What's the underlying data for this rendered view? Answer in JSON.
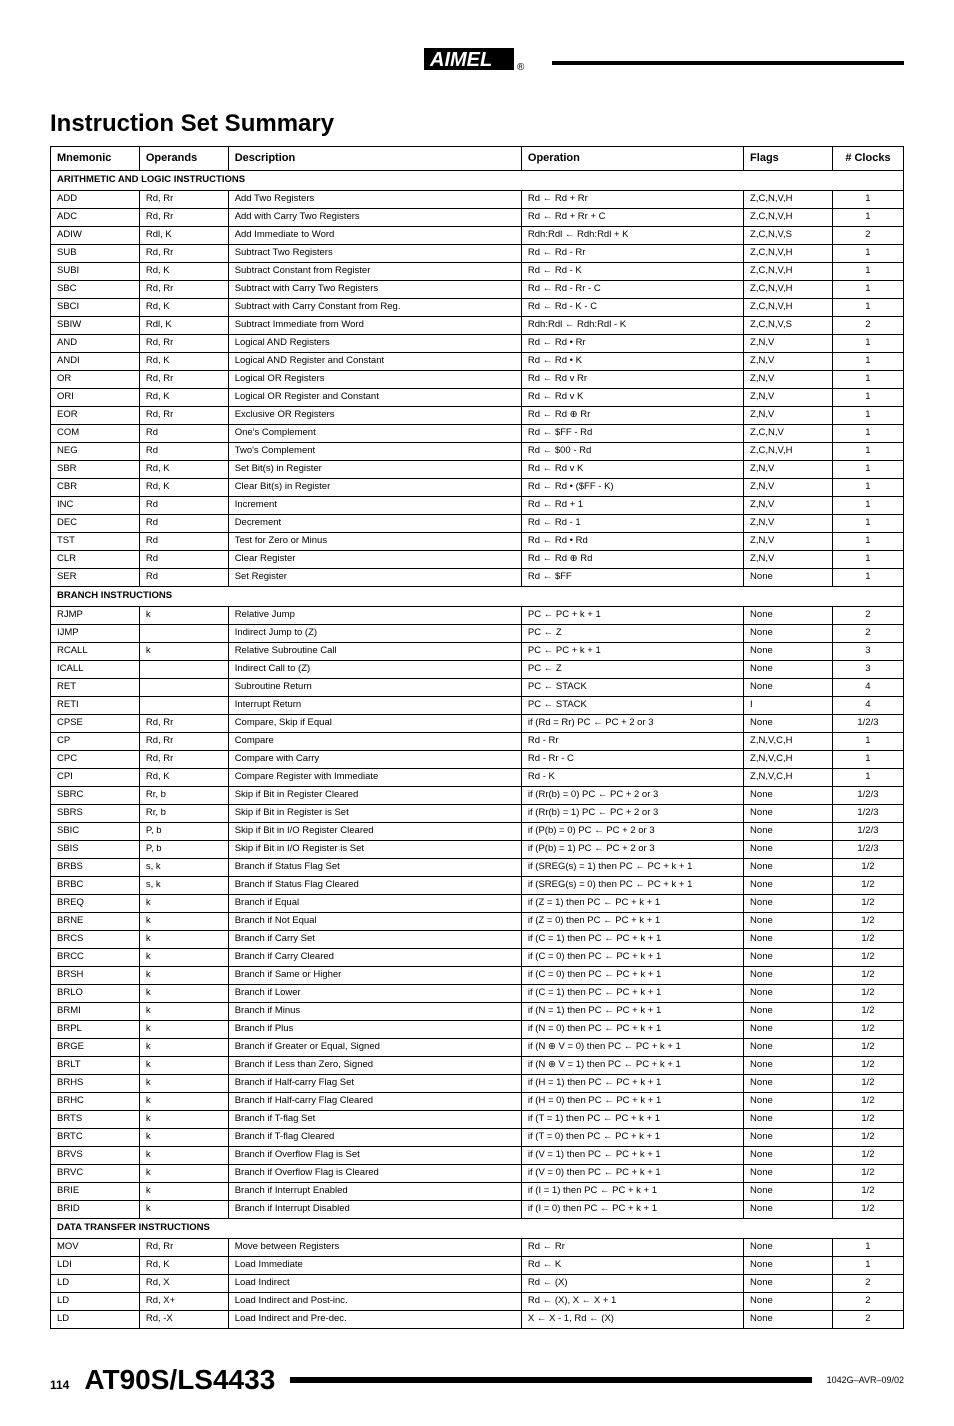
{
  "header": {
    "title": "Instruction Set Summary"
  },
  "columns": [
    "Mnemonic",
    "Operands",
    "Description",
    "Operation",
    "Flags",
    "# Clocks"
  ],
  "sections": [
    {
      "title": "ARITHMETIC AND LOGIC INSTRUCTIONS",
      "rows": [
        [
          "ADD",
          "Rd, Rr",
          "Add Two Registers",
          "Rd ← Rd + Rr",
          "Z,C,N,V,H",
          "1"
        ],
        [
          "ADC",
          "Rd, Rr",
          "Add with Carry Two Registers",
          "Rd ← Rd + Rr + C",
          "Z,C,N,V,H",
          "1"
        ],
        [
          "ADIW",
          "Rdl, K",
          "Add Immediate to Word",
          "Rdh:Rdl ← Rdh:Rdl + K",
          "Z,C,N,V,S",
          "2"
        ],
        [
          "SUB",
          "Rd, Rr",
          "Subtract Two Registers",
          "Rd ← Rd - Rr",
          "Z,C,N,V,H",
          "1"
        ],
        [
          "SUBI",
          "Rd, K",
          "Subtract Constant from Register",
          "Rd ← Rd - K",
          "Z,C,N,V,H",
          "1"
        ],
        [
          "SBC",
          "Rd, Rr",
          "Subtract with Carry Two Registers",
          "Rd ← Rd - Rr - C",
          "Z,C,N,V,H",
          "1"
        ],
        [
          "SBCI",
          "Rd, K",
          "Subtract with Carry Constant from Reg.",
          "Rd ← Rd - K - C",
          "Z,C,N,V,H",
          "1"
        ],
        [
          "SBIW",
          "Rdl, K",
          "Subtract Immediate from Word",
          "Rdh:Rdl ← Rdh:Rdl - K",
          "Z,C,N,V,S",
          "2"
        ],
        [
          "AND",
          "Rd, Rr",
          "Logical AND Registers",
          "Rd ← Rd • Rr",
          "Z,N,V",
          "1"
        ],
        [
          "ANDI",
          "Rd, K",
          "Logical AND Register and Constant",
          "Rd ← Rd • K",
          "Z,N,V",
          "1"
        ],
        [
          "OR",
          "Rd, Rr",
          "Logical OR Registers",
          "Rd ← Rd v Rr",
          "Z,N,V",
          "1"
        ],
        [
          "ORI",
          "Rd, K",
          "Logical OR Register and Constant",
          "Rd ← Rd v K",
          "Z,N,V",
          "1"
        ],
        [
          "EOR",
          "Rd, Rr",
          "Exclusive OR Registers",
          "Rd ← Rd ⊕ Rr",
          "Z,N,V",
          "1"
        ],
        [
          "COM",
          "Rd",
          "One's Complement",
          "Rd ← $FF - Rd",
          "Z,C,N,V",
          "1"
        ],
        [
          "NEG",
          "Rd",
          "Two's Complement",
          "Rd ← $00 - Rd",
          "Z,C,N,V,H",
          "1"
        ],
        [
          "SBR",
          "Rd, K",
          "Set Bit(s) in Register",
          "Rd ← Rd v K",
          "Z,N,V",
          "1"
        ],
        [
          "CBR",
          "Rd, K",
          "Clear Bit(s) in Register",
          "Rd ← Rd • ($FF - K)",
          "Z,N,V",
          "1"
        ],
        [
          "INC",
          "Rd",
          "Increment",
          "Rd ← Rd + 1",
          "Z,N,V",
          "1"
        ],
        [
          "DEC",
          "Rd",
          "Decrement",
          "Rd ← Rd - 1",
          "Z,N,V",
          "1"
        ],
        [
          "TST",
          "Rd",
          "Test for Zero or Minus",
          "Rd ← Rd • Rd",
          "Z,N,V",
          "1"
        ],
        [
          "CLR",
          "Rd",
          "Clear Register",
          "Rd ← Rd ⊕ Rd",
          "Z,N,V",
          "1"
        ],
        [
          "SER",
          "Rd",
          "Set Register",
          "Rd ← $FF",
          "None",
          "1"
        ]
      ]
    },
    {
      "title": "BRANCH INSTRUCTIONS",
      "rows": [
        [
          "RJMP",
          "k",
          "Relative Jump",
          "PC ← PC + k + 1",
          "None",
          "2"
        ],
        [
          "IJMP",
          "",
          "Indirect Jump to (Z)",
          "PC ← Z",
          "None",
          "2"
        ],
        [
          "RCALL",
          "k",
          "Relative Subroutine Call",
          "PC ← PC + k + 1",
          "None",
          "3"
        ],
        [
          "ICALL",
          "",
          "Indirect Call to (Z)",
          "PC ← Z",
          "None",
          "3"
        ],
        [
          "RET",
          "",
          "Subroutine Return",
          "PC ← STACK",
          "None",
          "4"
        ],
        [
          "RETI",
          "",
          "Interrupt Return",
          "PC ← STACK",
          "I",
          "4"
        ],
        [
          "CPSE",
          "Rd, Rr",
          "Compare, Skip if Equal",
          "if (Rd = Rr) PC ← PC + 2 or 3",
          "None",
          "1/2/3"
        ],
        [
          "CP",
          "Rd, Rr",
          "Compare",
          "Rd - Rr",
          "Z,N,V,C,H",
          "1"
        ],
        [
          "CPC",
          "Rd, Rr",
          "Compare with Carry",
          "Rd - Rr - C",
          "Z,N,V,C,H",
          "1"
        ],
        [
          "CPI",
          "Rd, K",
          "Compare Register with Immediate",
          "Rd - K",
          "Z,N,V,C,H",
          "1"
        ],
        [
          "SBRC",
          "Rr, b",
          "Skip if Bit in Register Cleared",
          "if (Rr(b) = 0) PC ← PC + 2 or 3",
          "None",
          "1/2/3"
        ],
        [
          "SBRS",
          "Rr, b",
          "Skip if Bit in Register is Set",
          "if (Rr(b) = 1) PC ← PC + 2 or 3",
          "None",
          "1/2/3"
        ],
        [
          "SBIC",
          "P, b",
          "Skip if Bit in I/O Register Cleared",
          "if (P(b) = 0) PC ← PC + 2 or 3",
          "None",
          "1/2/3"
        ],
        [
          "SBIS",
          "P, b",
          "Skip if Bit in I/O Register is Set",
          "if (P(b) = 1) PC ← PC + 2 or 3",
          "None",
          "1/2/3"
        ],
        [
          "BRBS",
          "s, k",
          "Branch if Status Flag Set",
          "if (SREG(s) = 1) then PC ← PC + k + 1",
          "None",
          "1/2"
        ],
        [
          "BRBC",
          "s, k",
          "Branch if Status Flag Cleared",
          "if (SREG(s) = 0) then PC ← PC + k + 1",
          "None",
          "1/2"
        ],
        [
          "BREQ",
          "k",
          "Branch if Equal",
          "if (Z = 1) then PC ← PC + k + 1",
          "None",
          "1/2"
        ],
        [
          "BRNE",
          "k",
          "Branch if Not Equal",
          "if (Z = 0) then PC ← PC + k + 1",
          "None",
          "1/2"
        ],
        [
          "BRCS",
          "k",
          "Branch if Carry Set",
          "if (C = 1) then PC ← PC + k + 1",
          "None",
          "1/2"
        ],
        [
          "BRCC",
          "k",
          "Branch if Carry Cleared",
          "if (C = 0) then PC ← PC + k + 1",
          "None",
          "1/2"
        ],
        [
          "BRSH",
          "k",
          "Branch if Same or Higher",
          "if (C = 0) then PC ← PC + k + 1",
          "None",
          "1/2"
        ],
        [
          "BRLO",
          "k",
          "Branch if Lower",
          "if (C = 1) then PC ← PC + k + 1",
          "None",
          "1/2"
        ],
        [
          "BRMI",
          "k",
          "Branch if Minus",
          "if (N = 1) then PC ← PC + k + 1",
          "None",
          "1/2"
        ],
        [
          "BRPL",
          "k",
          "Branch if Plus",
          "if (N = 0) then PC ← PC + k + 1",
          "None",
          "1/2"
        ],
        [
          "BRGE",
          "k",
          "Branch if Greater or Equal, Signed",
          "if (N ⊕ V = 0) then PC ← PC + k + 1",
          "None",
          "1/2"
        ],
        [
          "BRLT",
          "k",
          "Branch if Less than Zero, Signed",
          "if (N ⊕ V = 1) then PC ← PC + k + 1",
          "None",
          "1/2"
        ],
        [
          "BRHS",
          "k",
          "Branch if Half-carry Flag Set",
          "if (H = 1) then PC ← PC + k + 1",
          "None",
          "1/2"
        ],
        [
          "BRHC",
          "k",
          "Branch if Half-carry Flag Cleared",
          "if (H = 0) then PC ← PC + k + 1",
          "None",
          "1/2"
        ],
        [
          "BRTS",
          "k",
          "Branch if T-flag Set",
          "if (T = 1) then PC ← PC + k + 1",
          "None",
          "1/2"
        ],
        [
          "BRTC",
          "k",
          "Branch if T-flag Cleared",
          "if (T = 0) then PC ← PC + k + 1",
          "None",
          "1/2"
        ],
        [
          "BRVS",
          "k",
          "Branch if Overflow Flag is Set",
          "if (V = 1) then PC ← PC + k + 1",
          "None",
          "1/2"
        ],
        [
          "BRVC",
          "k",
          "Branch if Overflow Flag is Cleared",
          "if (V = 0) then PC ← PC + k + 1",
          "None",
          "1/2"
        ],
        [
          "BRIE",
          "k",
          "Branch if Interrupt Enabled",
          "if (I = 1) then PC ← PC + k + 1",
          "None",
          "1/2"
        ],
        [
          "BRID",
          "k",
          "Branch if Interrupt Disabled",
          "if (I = 0) then PC ← PC + k + 1",
          "None",
          "1/2"
        ]
      ]
    },
    {
      "title": "DATA TRANSFER INSTRUCTIONS",
      "rows": [
        [
          "MOV",
          "Rd, Rr",
          "Move between Registers",
          "Rd ← Rr",
          "None",
          "1"
        ],
        [
          "LDI",
          "Rd, K",
          "Load Immediate",
          "Rd ← K",
          "None",
          "1"
        ],
        [
          "LD",
          "Rd, X",
          "Load Indirect",
          "Rd ← (X)",
          "None",
          "2"
        ],
        [
          "LD",
          "Rd, X+",
          "Load Indirect and Post-inc.",
          "Rd ← (X), X ← X + 1",
          "None",
          "2"
        ],
        [
          "LD",
          "Rd, -X",
          "Load Indirect and Pre-dec.",
          "X ← X - 1, Rd ← (X)",
          "None",
          "2"
        ]
      ]
    }
  ],
  "footer": {
    "page": "114",
    "part": "AT90S/LS4433",
    "docid": "1042G–AVR–09/02"
  }
}
